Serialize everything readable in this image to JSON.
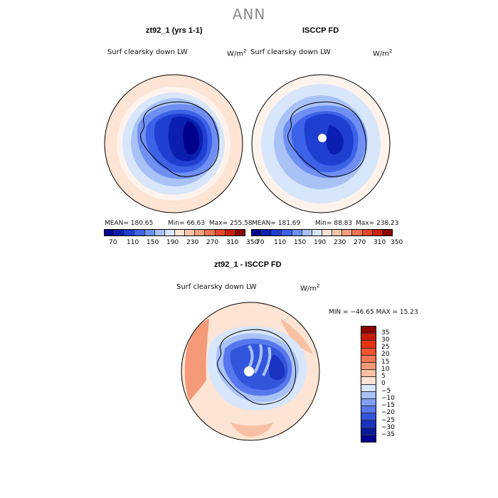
{
  "title": "ANN",
  "panels": {
    "left": {
      "title": "zt92_1 (yrs 1-1)",
      "variable": "Surf clearsky down LW",
      "units": "W/m",
      "units_exp": "2",
      "mean": "MEAN= 180.65",
      "min": "Min=  66.63",
      "max": "Max= 255.58"
    },
    "right": {
      "title": "ISCCP FD",
      "variable": "Surf clearsky down LW",
      "units": "W/m",
      "units_exp": "2",
      "mean": "MEAN= 181.69",
      "min": "Min=  88.83",
      "max": "Max= 238.23"
    },
    "diff": {
      "title": "zt92_1 - ISCCP FD",
      "variable": "Surf clearsky down LW",
      "units": "W/m",
      "units_exp": "2",
      "minmax": "MIN = −46.65 MAX =  15.23"
    }
  },
  "colorbar_top": {
    "labels": [
      "70",
      "110",
      "150",
      "190",
      "230",
      "270",
      "310",
      "350"
    ],
    "colors": [
      "#00008f",
      "#0a1fb0",
      "#1f3fd0",
      "#3d62e8",
      "#6f8ff2",
      "#a9c2f6",
      "#d8e6fb",
      "#fde4d4",
      "#f9c3a8",
      "#f4a07f",
      "#ee7455",
      "#e4462c",
      "#cc2010",
      "#8b0000"
    ]
  },
  "colorbar_diff": {
    "labels": [
      "35",
      "30",
      "25",
      "20",
      "15",
      "10",
      "5",
      "0",
      "−5",
      "−10",
      "−15",
      "−20",
      "−25",
      "−30",
      "−35"
    ],
    "colors": [
      "#8b0000",
      "#c81a08",
      "#e4330f",
      "#ee5230",
      "#f27655",
      "#f59a78",
      "#f8c0a2",
      "#fde4d4",
      "#d8e6fb",
      "#a9c2f6",
      "#7f9ff4",
      "#5678ec",
      "#3355dc",
      "#1a33c0",
      "#0a1a9c",
      "#00008f"
    ]
  }
}
